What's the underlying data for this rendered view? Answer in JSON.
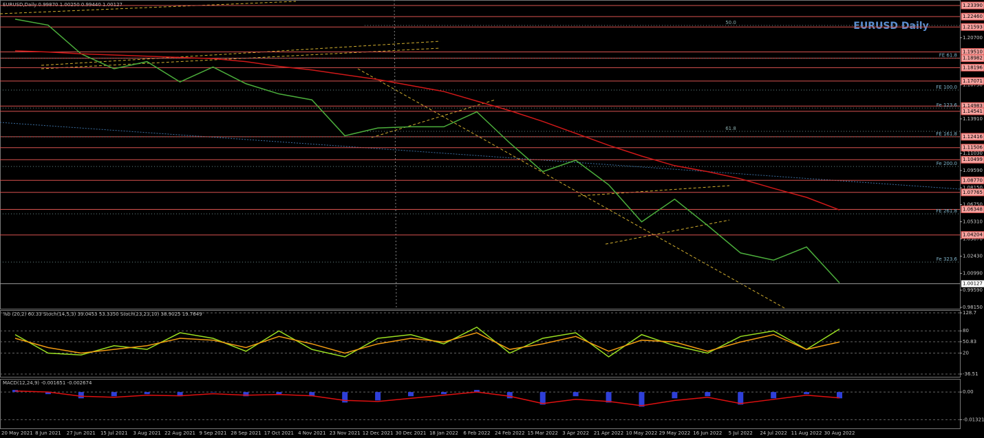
{
  "header": "EURUSD,Daily 0.99870 1.00250 0.99440 1.00127",
  "chart_data": [
    {
      "type": "line",
      "title": "EURUSD Daily",
      "categories": [
        "20 May 2021",
        "8 Jun 2021",
        "27 Jun 2021",
        "15 Jul 2021",
        "3 Aug 2021",
        "22 Aug 2021",
        "9 Sep 2021",
        "28 Sep 2021",
        "17 Oct 2021",
        "4 Nov 2021",
        "23 Nov 2021",
        "12 Dec 2021",
        "30 Dec 2021",
        "18 Jan 2022",
        "6 Feb 2022",
        "24 Feb 2022",
        "15 Mar 2022",
        "3 Apr 2022",
        "21 Apr 2022",
        "10 May 2022",
        "29 May 2022",
        "16 Jun 2022",
        "5 Jul 2022",
        "24 Jul 2022",
        "11 Aug 2022",
        "30 Aug 2022"
      ],
      "series": [
        {
          "color": "#4caf3c",
          "values": [
            1.2225,
            1.2175,
            1.1935,
            1.181,
            1.187,
            1.17,
            1.1825,
            1.1685,
            1.16,
            1.155,
            1.125,
            1.1315,
            1.1325,
            1.1325,
            1.145,
            1.119,
            1.095,
            1.1045,
            1.084,
            1.053,
            1.072,
            1.05,
            1.027,
            1.021,
            1.032,
            1.002
          ]
        },
        {
          "color": "#d01818",
          "values": [
            1.196,
            1.195,
            1.1935,
            1.1925,
            1.1915,
            1.1905,
            1.1895,
            1.187,
            1.183,
            1.18,
            1.176,
            1.172,
            1.167,
            1.162,
            1.154,
            1.146,
            1.137,
            1.127,
            1.117,
            1.108,
            1.1,
            1.095,
            1.089,
            1.081,
            1.0735,
            1.063
          ]
        }
      ],
      "ylim": [
        0.9798,
        1.2385
      ],
      "yticks": [
        {
          "value": 1.207,
          "label": "1.20700"
        },
        {
          "value": 1.1675,
          "label": "1.16750"
        },
        {
          "value": 1.1391,
          "label": "1.13910"
        },
        {
          "value": 1.1103,
          "label": "1.11030"
        },
        {
          "value": 1.0959,
          "label": "1.09590"
        },
        {
          "value": 1.0815,
          "label": "1.08150"
        },
        {
          "value": 1.0675,
          "label": "1.06750"
        },
        {
          "value": 1.0531,
          "label": "1.05310"
        },
        {
          "value": 1.0387,
          "label": "1.03870"
        },
        {
          "value": 1.0243,
          "label": "1.02430"
        },
        {
          "value": 1.0099,
          "label": "1.00990"
        },
        {
          "value": 0.9959,
          "label": "0.99590"
        },
        {
          "value": 0.9815,
          "label": "0.98150"
        }
      ],
      "levels": [
        {
          "value": 1.2339,
          "label": "1.23390"
        },
        {
          "value": 1.2246,
          "label": "1.22460"
        },
        {
          "value": 1.21593,
          "label": "1.21593"
        },
        {
          "value": 1.1951,
          "label": "1.19510"
        },
        {
          "value": 1.18982,
          "label": "1.18982"
        },
        {
          "value": 1.18196,
          "label": "1.18196"
        },
        {
          "value": 1.17071,
          "label": "1.17071"
        },
        {
          "value": 1.14983,
          "label": "1.14983"
        },
        {
          "value": 1.14541,
          "label": "1.14541"
        },
        {
          "value": 1.12416,
          "label": "1.12416"
        },
        {
          "value": 1.11506,
          "label": "1.11506"
        },
        {
          "value": 1.10499,
          "label": "1.10499"
        },
        {
          "value": 1.0877,
          "label": "1.08770"
        },
        {
          "value": 1.07765,
          "label": "1.07765"
        },
        {
          "value": 1.06348,
          "label": "1.06348"
        },
        {
          "value": 1.04204,
          "label": "1.04204"
        }
      ],
      "level_color": "#d9534f",
      "current": {
        "value": 1.00127,
        "label": "1.00127"
      },
      "expansions": [
        {
          "value": 1.18982,
          "label": "FE 61.8"
        },
        {
          "value": 1.1632,
          "label": "FE 100.0"
        },
        {
          "value": 1.1482,
          "label": "Fe 123.6"
        },
        {
          "value": 1.1241,
          "label": "FE 161.8"
        },
        {
          "value": 1.0993,
          "label": "Fe 200.0"
        },
        {
          "value": 1.0597,
          "label": "FE 261.8"
        },
        {
          "value": 1.0194,
          "label": "Fe 323.6"
        }
      ],
      "retracements": [
        {
          "value": 1.2172,
          "label": "50.0"
        },
        {
          "value": 1.1287,
          "label": "61.8"
        }
      ]
    },
    {
      "type": "line",
      "title": "%b (20,2) 60.33  Stoch(14,5,3) 39.0453 53.3350  Stoch(23,23,10) 38.9025 19.7649",
      "series": [
        {
          "color": "#9be021",
          "values": [
            70,
            20,
            15,
            40,
            30,
            75,
            60,
            25,
            80,
            30,
            10,
            60,
            70,
            45,
            90,
            20,
            60,
            75,
            10,
            70,
            40,
            20,
            65,
            80,
            30,
            85
          ]
        },
        {
          "color": "#f39c12",
          "values": [
            60,
            35,
            20,
            30,
            40,
            60,
            55,
            35,
            65,
            45,
            20,
            45,
            60,
            50,
            75,
            30,
            45,
            65,
            25,
            55,
            50,
            25,
            50,
            70,
            30,
            50
          ]
        }
      ],
      "ylim": [
        -45.8,
        136.1
      ],
      "yticks": [
        128.7,
        80,
        50.83,
        20,
        -36.51
      ]
    },
    {
      "type": "bar",
      "title": "MACD(12,24,9) -0.001651 -0.002674",
      "series": [
        {
          "color": "#2e3fd8",
          "values": [
            0.001,
            -0.001,
            -0.003,
            -0.002,
            -0.001,
            -0.002,
            0,
            -0.002,
            -0.001,
            -0.002,
            -0.005,
            -0.004,
            -0.002,
            -0.001,
            0.001,
            -0.003,
            -0.006,
            -0.002,
            -0.005,
            -0.007,
            -0.003,
            -0.002,
            -0.006,
            -0.003,
            -0.001,
            -0.003
          ]
        },
        {
          "color": "#e01010",
          "type": "line",
          "values": [
            0.0005,
            0,
            -0.002,
            -0.0025,
            -0.0015,
            -0.0018,
            -0.0008,
            -0.0015,
            -0.0012,
            -0.0018,
            -0.004,
            -0.0045,
            -0.003,
            -0.0015,
            0,
            -0.002,
            -0.0055,
            -0.0035,
            -0.0045,
            -0.0065,
            -0.004,
            -0.0025,
            -0.0055,
            -0.0035,
            -0.0015,
            -0.0028
          ]
        }
      ],
      "ylim": [
        -0.0177,
        0.0063
      ],
      "yticks": [
        {
          "value": 0,
          "label": "0.00"
        },
        -0.013211
      ]
    }
  ]
}
